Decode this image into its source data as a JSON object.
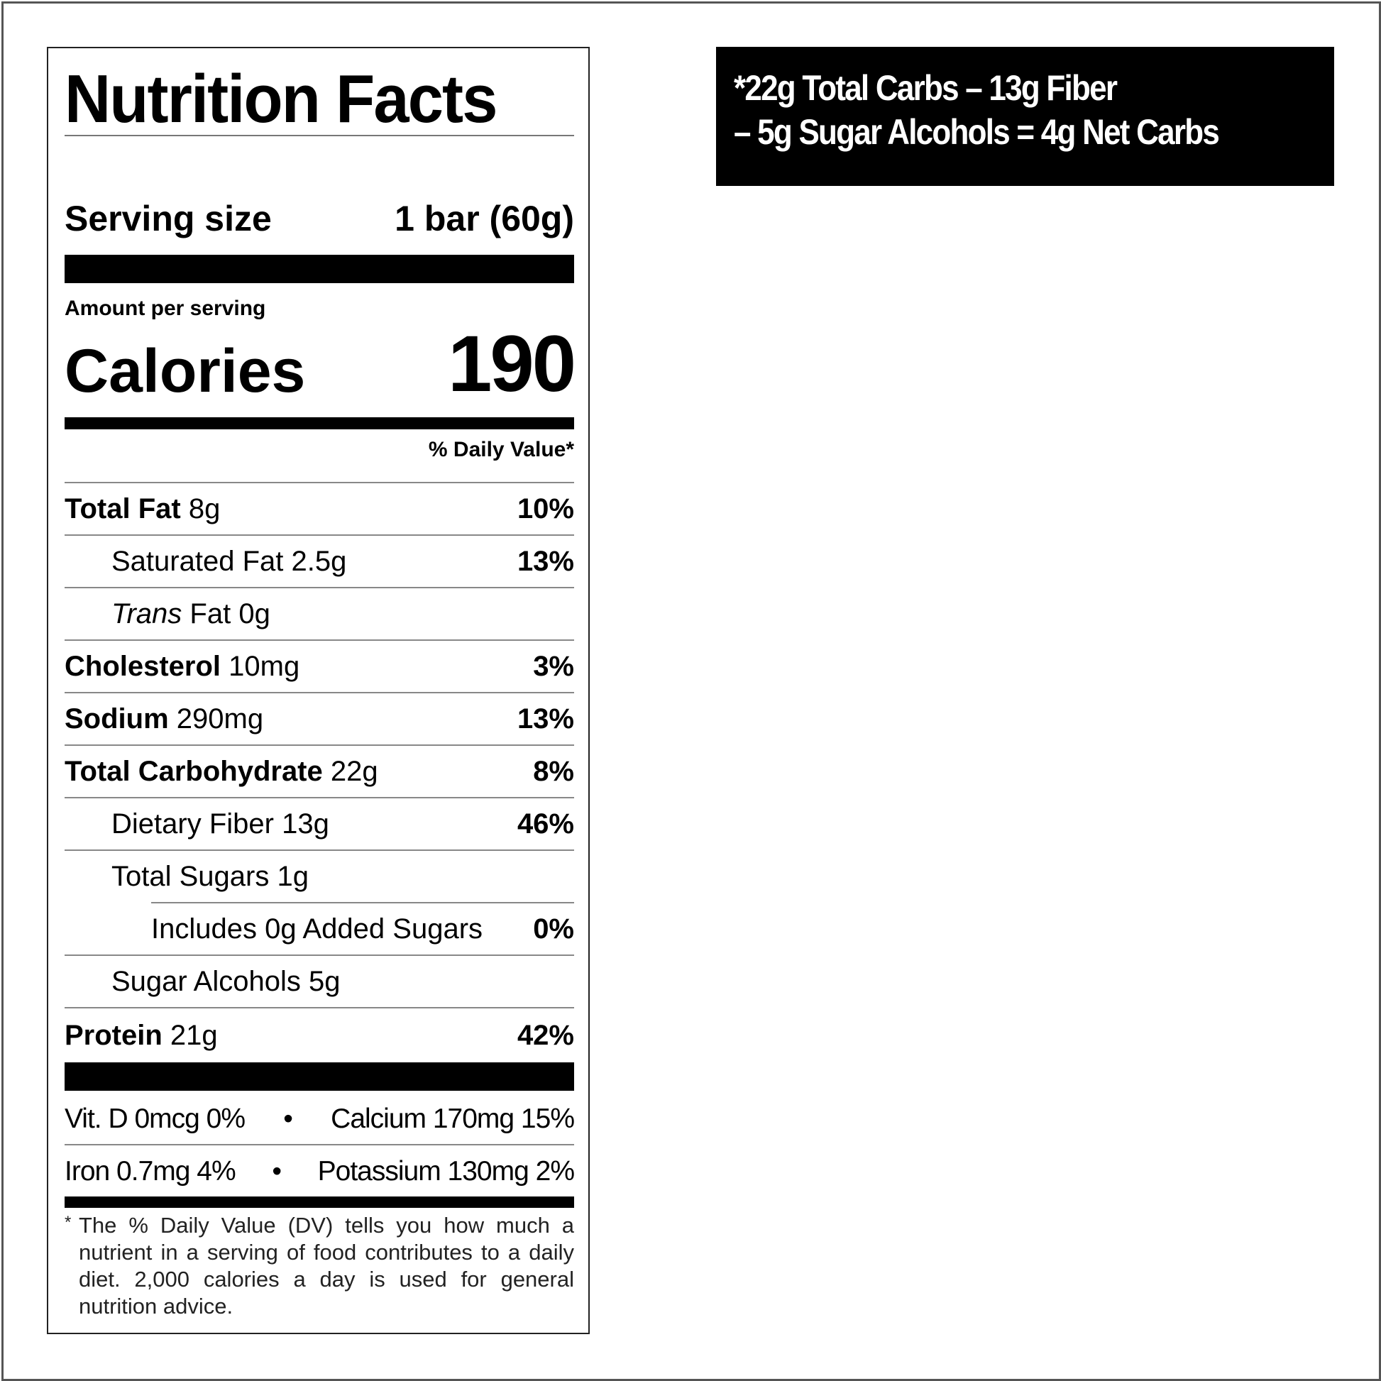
{
  "label": {
    "title": "Nutrition Facts",
    "serving_size_label": "Serving size",
    "serving_size_value": "1 bar (60g)",
    "amount_per_serving": "Amount per serving",
    "calories_label": "Calories",
    "calories_value": "190",
    "daily_value_header": "% Daily Value*",
    "nutrients": [
      {
        "name": "Total Fat",
        "amount": "8g",
        "dv": "10%"
      },
      {
        "name": "Saturated Fat",
        "amount": "2.5g",
        "dv": "13%"
      },
      {
        "name": "Trans",
        "name_suffix": "Fat",
        "amount": "0g",
        "dv": ""
      },
      {
        "name": "Cholesterol",
        "amount": "10mg",
        "dv": "3%"
      },
      {
        "name": "Sodium",
        "amount": "290mg",
        "dv": "13%"
      },
      {
        "name": "Total Carbohydrate",
        "amount": "22g",
        "dv": "8%"
      },
      {
        "name": "Dietary Fiber",
        "amount": "13g",
        "dv": "46%"
      },
      {
        "name": "Total Sugars",
        "amount": "1g",
        "dv": ""
      },
      {
        "name": "Includes 0g Added Sugars",
        "amount": "",
        "dv": "0%"
      },
      {
        "name": "Sugar Alcohols",
        "amount": "5g",
        "dv": ""
      },
      {
        "name": "Protein",
        "amount": "21g",
        "dv": "42%"
      }
    ],
    "vitamins": [
      {
        "left": "Vit. D 0mcg 0%",
        "right": "Calcium 170mg 15%"
      },
      {
        "left": "Iron 0.7mg 4%",
        "right": "Potassium 130mg 2%"
      }
    ],
    "separator": "•",
    "footnote_mark": "*",
    "footnote": "The % Daily Value (DV) tells you how much a nutrient in a serving of food contributes to a daily diet. 2,000 calories a day is used for general nutrition advice."
  },
  "callout": {
    "line1": "*22g Total Carbs – 13g Fiber",
    "line2": "– 5g Sugar Alcohols = 4g Net Carbs",
    "background": "#000000",
    "text_color": "#ffffff"
  }
}
